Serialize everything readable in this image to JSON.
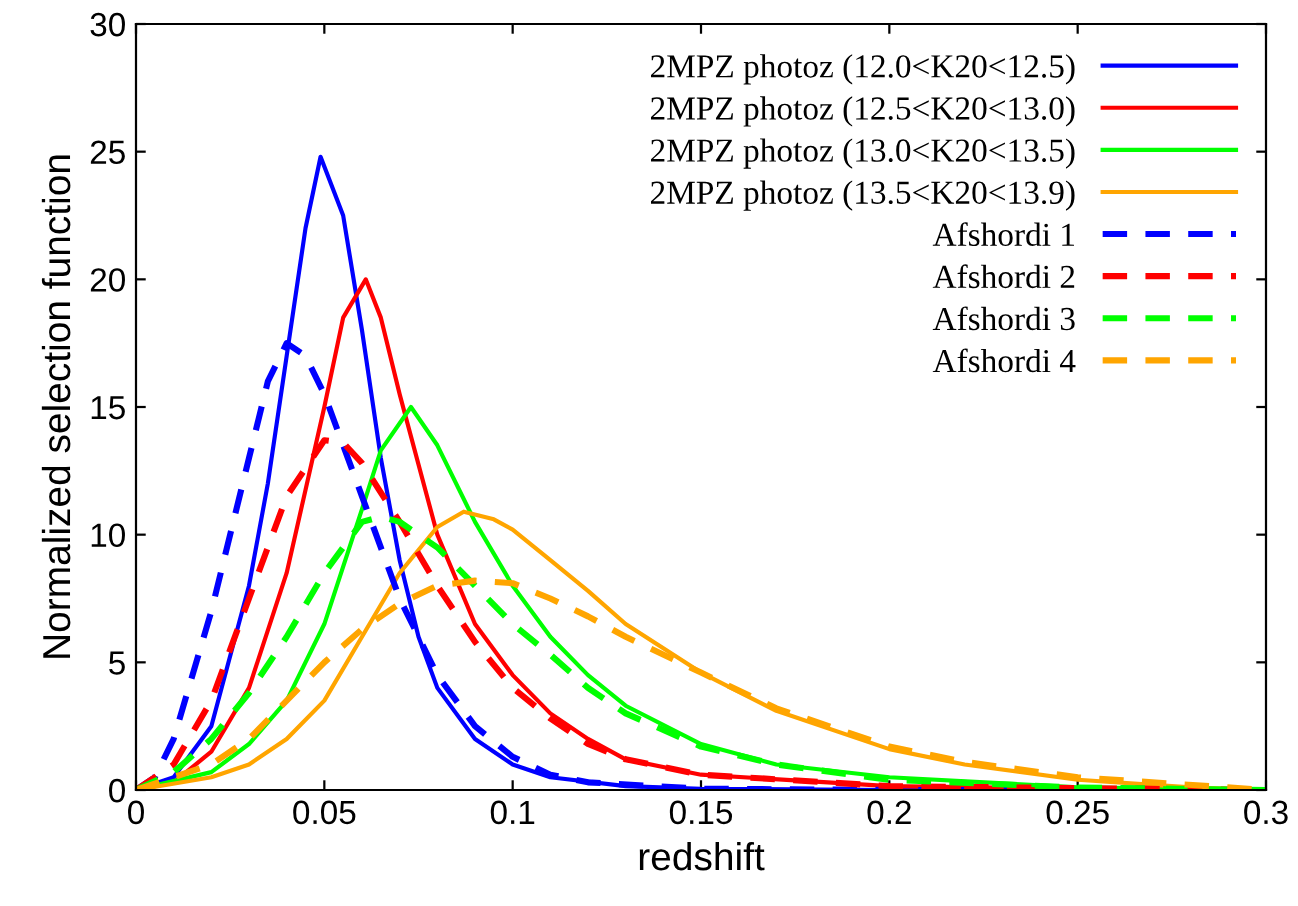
{
  "chart_data": {
    "type": "line",
    "xlabel": "redshift",
    "ylabel": "Normalized selection function",
    "xlim": [
      0,
      0.3
    ],
    "ylim": [
      0,
      30
    ],
    "xticks": [
      0,
      0.05,
      0.1,
      0.15,
      0.2,
      0.25,
      0.3
    ],
    "yticks": [
      0,
      5,
      10,
      15,
      20,
      25,
      30
    ],
    "grid": false,
    "legend": "top right",
    "marker": "none",
    "series": [
      {
        "name": "2MPZ photoz (12.0<K20<12.5)",
        "color": "#0000ff",
        "line_style": "solid",
        "x": [
          0,
          0.01,
          0.02,
          0.03,
          0.035,
          0.04,
          0.045,
          0.049,
          0.055,
          0.06,
          0.065,
          0.07,
          0.075,
          0.08,
          0.09,
          0.1,
          0.11,
          0.13,
          0.15,
          0.2,
          0.3
        ],
        "values": [
          0,
          0.5,
          2.5,
          8,
          12,
          17,
          22,
          24.8,
          22.5,
          18,
          13,
          9,
          6,
          4,
          2,
          1,
          0.5,
          0.15,
          0.05,
          0,
          0
        ]
      },
      {
        "name": "2MPZ photoz (12.5<K20<13.0)",
        "color": "#ff0000",
        "line_style": "solid",
        "x": [
          0,
          0.01,
          0.02,
          0.03,
          0.04,
          0.05,
          0.055,
          0.061,
          0.065,
          0.07,
          0.08,
          0.09,
          0.1,
          0.11,
          0.12,
          0.13,
          0.15,
          0.2,
          0.25,
          0.3
        ],
        "values": [
          0,
          0.3,
          1.5,
          4,
          8.5,
          15,
          18.5,
          20,
          18.5,
          15.5,
          10,
          6.5,
          4.5,
          3,
          2,
          1.2,
          0.6,
          0.15,
          0.05,
          0
        ]
      },
      {
        "name": "2MPZ photoz (13.0<K20<13.5)",
        "color": "#00ff00",
        "line_style": "solid",
        "x": [
          0,
          0.02,
          0.03,
          0.04,
          0.05,
          0.06,
          0.065,
          0.073,
          0.08,
          0.09,
          0.1,
          0.11,
          0.12,
          0.13,
          0.15,
          0.17,
          0.2,
          0.25,
          0.3
        ],
        "values": [
          0,
          0.7,
          1.8,
          3.5,
          6.5,
          11,
          13.3,
          15,
          13.5,
          10.5,
          8,
          6,
          4.5,
          3.3,
          1.8,
          1,
          0.5,
          0.1,
          0
        ]
      },
      {
        "name": "2MPZ photoz (13.5<K20<13.9)",
        "color": "#ffa500",
        "line_style": "solid",
        "x": [
          0,
          0.02,
          0.03,
          0.04,
          0.05,
          0.06,
          0.07,
          0.08,
          0.087,
          0.095,
          0.1,
          0.11,
          0.12,
          0.13,
          0.15,
          0.17,
          0.2,
          0.22,
          0.25,
          0.28,
          0.3
        ],
        "values": [
          0,
          0.5,
          1,
          2,
          3.5,
          6,
          8.5,
          10.3,
          10.9,
          10.6,
          10.2,
          9,
          7.8,
          6.5,
          4.6,
          3.1,
          1.6,
          1,
          0.4,
          0.1,
          0
        ]
      },
      {
        "name": "Afshordi 1",
        "color": "#0000ff",
        "line_style": "dashed",
        "x": [
          0,
          0.005,
          0.01,
          0.02,
          0.03,
          0.035,
          0.04,
          0.045,
          0.05,
          0.055,
          0.06,
          0.07,
          0.08,
          0.09,
          0.1,
          0.11,
          0.12,
          0.15,
          0.2,
          0.3
        ],
        "values": [
          0,
          0.5,
          2,
          7,
          13,
          16,
          17.5,
          17,
          15.5,
          13.5,
          11.5,
          7.5,
          4.5,
          2.5,
          1.3,
          0.6,
          0.3,
          0.05,
          0,
          0
        ]
      },
      {
        "name": "Afshordi 2",
        "color": "#ff0000",
        "line_style": "dashed",
        "x": [
          0,
          0.01,
          0.02,
          0.03,
          0.04,
          0.05,
          0.055,
          0.06,
          0.07,
          0.08,
          0.09,
          0.1,
          0.11,
          0.12,
          0.13,
          0.15,
          0.2,
          0.3
        ],
        "values": [
          0,
          1,
          3.5,
          7.5,
          11.5,
          13.7,
          13.6,
          12.8,
          10.5,
          8,
          5.8,
          4,
          2.8,
          1.8,
          1.2,
          0.6,
          0.15,
          0
        ]
      },
      {
        "name": "Afshordi 3",
        "color": "#00ff00",
        "line_style": "dashed",
        "x": [
          0,
          0.01,
          0.02,
          0.03,
          0.04,
          0.05,
          0.06,
          0.065,
          0.07,
          0.08,
          0.09,
          0.1,
          0.11,
          0.12,
          0.13,
          0.15,
          0.17,
          0.2,
          0.25,
          0.3
        ],
        "values": [
          0,
          0.7,
          2,
          3.8,
          6,
          8.5,
          10.5,
          10.7,
          10.5,
          9.5,
          8,
          6.5,
          5.3,
          4,
          3,
          1.7,
          1,
          0.4,
          0.1,
          0
        ]
      },
      {
        "name": "Afshordi 4",
        "color": "#ffa500",
        "line_style": "dashed",
        "x": [
          0,
          0.02,
          0.03,
          0.04,
          0.05,
          0.06,
          0.07,
          0.08,
          0.09,
          0.1,
          0.11,
          0.12,
          0.13,
          0.15,
          0.17,
          0.2,
          0.22,
          0.25,
          0.3
        ],
        "values": [
          0,
          1,
          2,
          3.5,
          5,
          6.3,
          7.3,
          8,
          8.2,
          8.1,
          7.5,
          6.8,
          6,
          4.6,
          3.2,
          1.7,
          1.1,
          0.5,
          0
        ]
      }
    ]
  }
}
